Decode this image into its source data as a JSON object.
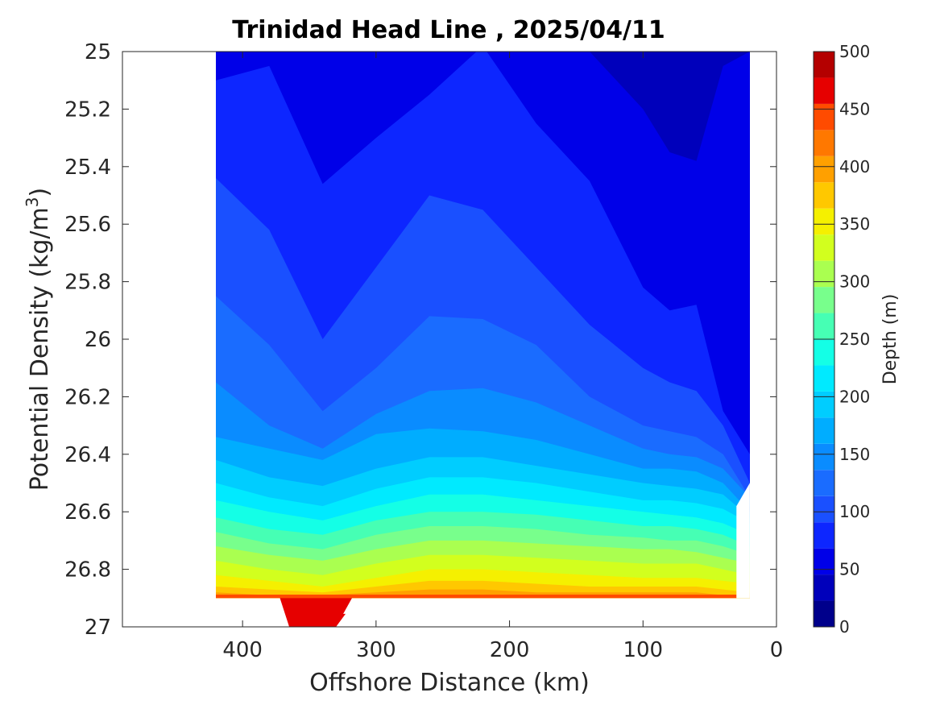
{
  "chart_data": {
    "type": "contour",
    "title": "Trinidad Head Line , 2025/04/11",
    "xlabel": "Offshore Distance (km)",
    "ylabel": "Potential Density (kg/m",
    "ylabel_sup": "3",
    "ylabel_close": ")",
    "xlim": [
      490,
      0
    ],
    "ylim": [
      25,
      27
    ],
    "x_reversed": true,
    "y_reversed": true,
    "x_ticks": [
      400,
      300,
      200,
      100,
      0
    ],
    "y_ticks": [
      25,
      25.2,
      25.4,
      25.6,
      25.8,
      26,
      26.2,
      26.4,
      26.6,
      26.8,
      27
    ],
    "y_tick_labels": [
      "25",
      "25.2",
      "25.4",
      "25.6",
      "25.8",
      "26",
      "26.2",
      "26.4",
      "26.6",
      "26.8",
      "27"
    ],
    "colorbar": {
      "label": "Depth (m)",
      "min": 0,
      "max": 500,
      "ticks": [
        0,
        50,
        100,
        150,
        200,
        250,
        300,
        350,
        400,
        450,
        500
      ],
      "levels": [
        0,
        25,
        50,
        75,
        100,
        125,
        150,
        175,
        200,
        225,
        250,
        275,
        300,
        325,
        350,
        375,
        400,
        425,
        450,
        475,
        500
      ],
      "colors": [
        "#00008b",
        "#0000bb",
        "#0000e8",
        "#0d26ff",
        "#1a50ff",
        "#1a6cff",
        "#0a8cff",
        "#00adff",
        "#00cdff",
        "#00eaff",
        "#14ffe6",
        "#46ffb4",
        "#78ff8c",
        "#aaff50",
        "#d2ff1e",
        "#f5f000",
        "#ffc800",
        "#ffa000",
        "#ff7800",
        "#ff4b00",
        "#e60000",
        "#b40000"
      ]
    },
    "bottom_band": {
      "x": [
        420,
        30
      ],
      "density": 26.9,
      "depth": 475
    },
    "trough": {
      "x": [
        372,
        365,
        330,
        318
      ],
      "depth": 500
    },
    "stations_x": [
      420,
      380,
      340,
      300,
      260,
      220,
      180,
      140,
      100,
      80,
      60,
      40,
      20
    ],
    "isolines": [
      {
        "depth": 25,
        "y": [
          25.0,
          25.0,
          25.0,
          25.0,
          25.0,
          25.0,
          25.0,
          25.0,
          25.0,
          25.0,
          25.0,
          25.0,
          25.0
        ]
      },
      {
        "depth": 50,
        "y": [
          25.0,
          25.0,
          25.0,
          25.0,
          25.0,
          25.0,
          25.0,
          25.0,
          25.2,
          25.35,
          25.38,
          25.05,
          25.0
        ]
      },
      {
        "depth": 75,
        "y": [
          25.1,
          25.05,
          25.46,
          25.3,
          25.15,
          24.98,
          25.25,
          25.45,
          25.82,
          25.9,
          25.88,
          26.25,
          26.4
        ]
      },
      {
        "depth": 100,
        "y": [
          25.44,
          25.62,
          26.0,
          25.75,
          25.5,
          25.55,
          25.75,
          25.95,
          26.1,
          26.15,
          26.18,
          26.3,
          26.5
        ]
      },
      {
        "depth": 125,
        "y": [
          25.85,
          26.02,
          26.25,
          26.1,
          25.92,
          25.93,
          26.02,
          26.2,
          26.3,
          26.32,
          26.34,
          26.4,
          26.55
        ]
      },
      {
        "depth": 150,
        "y": [
          26.15,
          26.3,
          26.38,
          26.26,
          26.18,
          26.17,
          26.22,
          26.3,
          26.38,
          26.4,
          26.41,
          26.45,
          26.55
        ]
      },
      {
        "depth": 175,
        "y": [
          26.34,
          26.38,
          26.42,
          26.33,
          26.31,
          26.32,
          26.35,
          26.4,
          26.45,
          26.45,
          26.46,
          26.5,
          26.6
        ]
      },
      {
        "depth": 200,
        "y": [
          26.42,
          26.48,
          26.51,
          26.45,
          26.41,
          26.41,
          26.44,
          26.47,
          26.5,
          26.51,
          26.52,
          26.54,
          26.62
        ]
      },
      {
        "depth": 225,
        "y": [
          26.5,
          26.55,
          26.58,
          26.52,
          26.48,
          26.48,
          26.5,
          26.53,
          26.56,
          26.56,
          26.57,
          26.59,
          26.64
        ]
      },
      {
        "depth": 250,
        "y": [
          26.56,
          26.6,
          26.63,
          26.58,
          26.54,
          26.54,
          26.56,
          26.58,
          26.6,
          26.61,
          26.62,
          26.64,
          26.68
        ]
      },
      {
        "depth": 275,
        "y": [
          26.62,
          26.66,
          26.68,
          26.63,
          26.6,
          26.6,
          26.61,
          26.63,
          26.65,
          26.65,
          26.66,
          26.68,
          26.72
        ]
      },
      {
        "depth": 300,
        "y": [
          26.67,
          26.71,
          26.73,
          26.68,
          26.65,
          26.65,
          26.66,
          26.68,
          26.69,
          26.7,
          26.7,
          26.72,
          26.75
        ]
      },
      {
        "depth": 325,
        "y": [
          26.72,
          26.75,
          26.77,
          26.73,
          26.7,
          26.7,
          26.71,
          26.72,
          26.73,
          26.73,
          26.74,
          26.76,
          26.78
        ]
      },
      {
        "depth": 350,
        "y": [
          26.77,
          26.8,
          26.82,
          26.78,
          26.75,
          26.75,
          26.76,
          26.77,
          26.78,
          26.78,
          26.78,
          26.8,
          26.82
        ]
      },
      {
        "depth": 375,
        "y": [
          26.82,
          26.84,
          26.86,
          26.83,
          26.8,
          26.8,
          26.81,
          26.82,
          26.83,
          26.83,
          26.83,
          26.84,
          26.85
        ]
      },
      {
        "depth": 400,
        "y": [
          26.86,
          26.87,
          26.88,
          26.86,
          26.84,
          26.84,
          26.85,
          26.86,
          26.86,
          26.86,
          26.86,
          26.87,
          26.88
        ]
      },
      {
        "depth": 425,
        "y": [
          26.88,
          26.89,
          26.89,
          26.88,
          26.87,
          26.87,
          26.88,
          26.88,
          26.88,
          26.88,
          26.88,
          26.89,
          26.89
        ]
      }
    ]
  }
}
